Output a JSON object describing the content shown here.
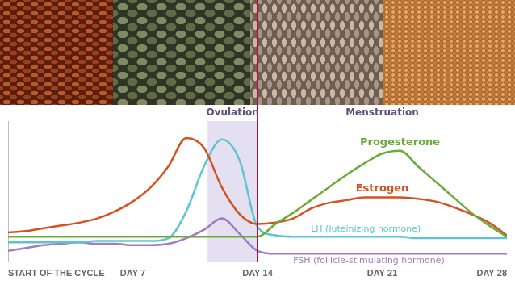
{
  "chart_data": {
    "type": "line",
    "x": [
      0,
      1,
      2,
      3,
      4,
      5,
      6,
      7,
      8,
      9,
      10,
      11,
      12,
      13,
      14,
      15,
      16,
      17,
      18,
      19,
      20,
      21,
      22,
      23,
      24,
      25,
      26,
      27,
      28
    ],
    "xlim": [
      0,
      28
    ],
    "xticks": [
      {
        "value": 0,
        "label": "START OF THE CYCLE"
      },
      {
        "value": 7,
        "label": "DAY 7"
      },
      {
        "value": 14,
        "label": "DAY 14"
      },
      {
        "value": 21,
        "label": "DAY 21"
      },
      {
        "value": 28,
        "label": "DAY 28"
      }
    ],
    "ylim": [
      0,
      100
    ],
    "yticks": [],
    "grid": false,
    "tick_labels": "x",
    "series": [
      {
        "name": "Progesterone",
        "color": "#6aab3a",
        "values": [
          18,
          18,
          18,
          18,
          18,
          18,
          18,
          18,
          18,
          18,
          18,
          18,
          18,
          18,
          18,
          27,
          35,
          44,
          53,
          62,
          70,
          77,
          79,
          68,
          57,
          46,
          35,
          26,
          18
        ]
      },
      {
        "name": "Estrogen",
        "color": "#d4521f",
        "values": [
          21,
          22,
          24,
          26,
          28,
          31,
          36,
          43,
          53,
          68,
          88,
          81,
          53,
          34,
          27,
          28,
          31,
          38,
          42,
          44,
          46,
          46,
          46,
          45,
          43,
          39,
          34,
          28,
          19
        ]
      },
      {
        "name": "LH (luteinizing hormone)",
        "color": "#5bc6cf",
        "values": [
          14,
          14,
          14,
          14,
          14,
          15,
          15,
          15,
          15,
          17,
          36,
          68,
          87,
          72,
          25,
          19,
          18,
          18,
          18,
          18,
          18,
          18,
          18,
          17,
          17,
          17,
          17,
          17,
          17
        ]
      },
      {
        "name": "FSH (follicle-stimulating hormone)",
        "color": "#a07cc5",
        "values": [
          8,
          10,
          12,
          13,
          14,
          13,
          13,
          12,
          12,
          13,
          17,
          23,
          31,
          20,
          8,
          6,
          6,
          6,
          6,
          6,
          6,
          6,
          6,
          6,
          6,
          6,
          6,
          6,
          6
        ]
      }
    ],
    "annotations": [
      {
        "text": "Ovulation",
        "x": [
          11.2,
          14
        ]
      },
      {
        "text": "Menstruation",
        "x": 21
      }
    ],
    "reference_lines": [
      {
        "x": 14,
        "color": "#a3154a"
      }
    ]
  }
}
